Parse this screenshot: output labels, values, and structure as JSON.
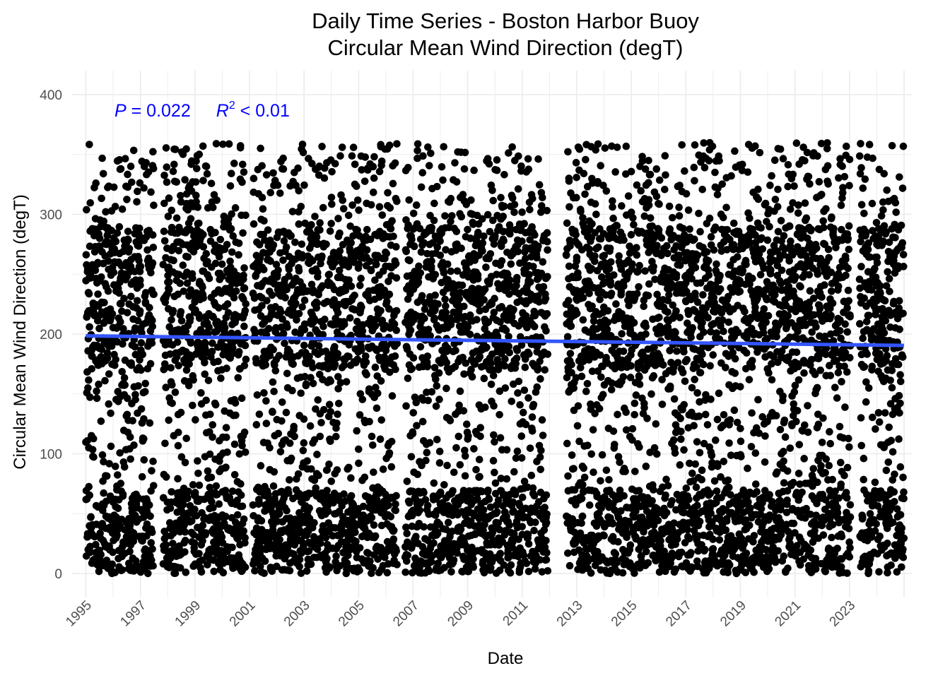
{
  "chart_data": {
    "type": "scatter",
    "title": "Daily Time Series - Boston Harbor Buoy",
    "subtitle": "Circular Mean Wind Direction (degT)",
    "xlabel": "Date",
    "ylabel": "Circular Mean Wind Direction (degT)",
    "x_ticks": [
      "1995",
      "1997",
      "1999",
      "2001",
      "2003",
      "2005",
      "2007",
      "2009",
      "2011",
      "2013",
      "2015",
      "2017",
      "2019",
      "2021",
      "2023"
    ],
    "y_ticks": [
      0,
      100,
      200,
      300,
      400
    ],
    "xlim": [
      "1994-07-01",
      "2025-04-15"
    ],
    "ylim": [
      -20,
      420
    ],
    "grid": true,
    "point_color": "#000000",
    "annotation": {
      "p_symbol": "P",
      "p_text": " = 0.022",
      "r_symbol": "R",
      "r_exp": "2",
      "r_text": " < 0.01",
      "color": "#0000ff"
    },
    "trend_line": {
      "color": "#3355ff",
      "x": [
        "1995-01-01",
        "2024-12-31"
      ],
      "y": [
        198.5,
        190.5
      ]
    },
    "data_gaps": [
      [
        "1997-07-01",
        "1997-10-31"
      ],
      [
        "2000-11-15",
        "2001-02-15"
      ],
      [
        "2006-06-01",
        "2006-09-15"
      ],
      [
        "2011-12-10",
        "2012-08-10"
      ],
      [
        "2023-01-15",
        "2023-05-15"
      ]
    ],
    "series": [
      {
        "values_description_free": true,
        "x_start": "1995-01-01",
        "x_end": "2024-12-31",
        "y_min": 0,
        "y_max": 360
      }
    ]
  }
}
